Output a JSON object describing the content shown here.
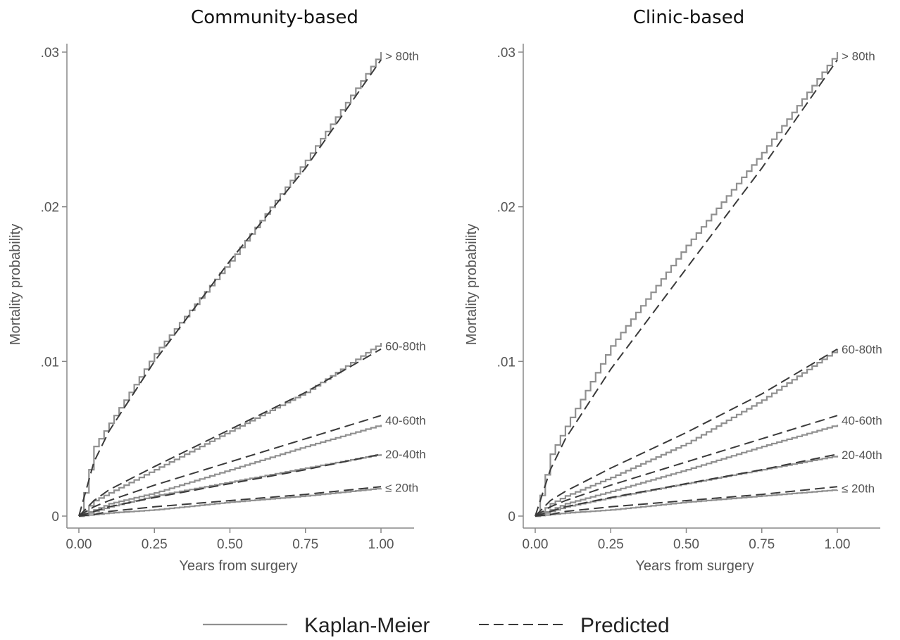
{
  "chart_data": [
    {
      "type": "line",
      "title": "Community-based",
      "xlabel": "Years from surgery",
      "ylabel": "Mortality probability",
      "xlim": [
        0,
        1
      ],
      "ylim": [
        0,
        0.03
      ],
      "xticks": [
        "0.00",
        "0.25",
        "0.50",
        "0.75",
        "1.00"
      ],
      "yticks": [
        "0",
        ".01",
        ".02",
        ".03"
      ],
      "x": [
        0,
        0.05,
        0.1,
        0.25,
        0.5,
        0.75,
        1.0
      ],
      "series": [
        {
          "name": "> 80th",
          "kind": "Kaplan-Meier",
          "values": [
            0,
            0.0045,
            0.006,
            0.0105,
            0.0165,
            0.023,
            0.03
          ]
        },
        {
          "name": "> 80th",
          "kind": "Predicted",
          "values": [
            0,
            0.0035,
            0.0055,
            0.01,
            0.0165,
            0.0225,
            0.0295
          ]
        },
        {
          "name": "60-80th",
          "kind": "Kaplan-Meier",
          "values": [
            0,
            0.001,
            0.0015,
            0.003,
            0.0055,
            0.008,
            0.0112
          ]
        },
        {
          "name": "60-80th",
          "kind": "Predicted",
          "values": [
            0,
            0.001,
            0.0017,
            0.0032,
            0.0056,
            0.008,
            0.0108
          ]
        },
        {
          "name": "40-60th",
          "kind": "Kaplan-Meier",
          "values": [
            0,
            0.0004,
            0.0008,
            0.0015,
            0.003,
            0.0045,
            0.0059
          ]
        },
        {
          "name": "40-60th",
          "kind": "Predicted",
          "values": [
            0,
            0.0006,
            0.001,
            0.002,
            0.0035,
            0.005,
            0.0065
          ]
        },
        {
          "name": "20-40th",
          "kind": "Kaplan-Meier",
          "values": [
            0,
            0.0003,
            0.0006,
            0.0013,
            0.0022,
            0.0031,
            0.004
          ]
        },
        {
          "name": "20-40th",
          "kind": "Predicted",
          "values": [
            0,
            0.0003,
            0.0006,
            0.0012,
            0.0021,
            0.003,
            0.004
          ]
        },
        {
          "name": "≤ 20th",
          "kind": "Kaplan-Meier",
          "values": [
            0,
            0.0001,
            0.0002,
            0.0004,
            0.0009,
            0.0013,
            0.0018
          ]
        },
        {
          "name": "≤ 20th",
          "kind": "Predicted",
          "values": [
            0,
            0.0001,
            0.0003,
            0.0006,
            0.001,
            0.0014,
            0.0019
          ]
        }
      ]
    },
    {
      "type": "line",
      "title": "Clinic-based",
      "xlabel": "Years from surgery",
      "ylabel": "Mortality probability",
      "xlim": [
        0,
        1
      ],
      "ylim": [
        0,
        0.03
      ],
      "xticks": [
        "0.00",
        "0.25",
        "0.50",
        "0.75",
        "1.00"
      ],
      "yticks": [
        "0",
        ".01",
        ".02",
        ".03"
      ],
      "x": [
        0,
        0.05,
        0.1,
        0.25,
        0.5,
        0.75,
        1.0
      ],
      "series": [
        {
          "name": "> 80th",
          "kind": "Kaplan-Meier",
          "values": [
            0,
            0.004,
            0.0058,
            0.011,
            0.0175,
            0.0235,
            0.03
          ]
        },
        {
          "name": "> 80th",
          "kind": "Predicted",
          "values": [
            0,
            0.003,
            0.005,
            0.0095,
            0.016,
            0.0225,
            0.0295
          ]
        },
        {
          "name": "60-80th",
          "kind": "Kaplan-Meier",
          "values": [
            0,
            0.0008,
            0.0013,
            0.0025,
            0.0047,
            0.0075,
            0.0108
          ]
        },
        {
          "name": "60-80th",
          "kind": "Predicted",
          "values": [
            0,
            0.001,
            0.0016,
            0.0031,
            0.0054,
            0.0079,
            0.0108
          ]
        },
        {
          "name": "40-60th",
          "kind": "Kaplan-Meier",
          "values": [
            0,
            0.0004,
            0.0008,
            0.0016,
            0.003,
            0.0045,
            0.0059
          ]
        },
        {
          "name": "40-60th",
          "kind": "Predicted",
          "values": [
            0,
            0.0006,
            0.001,
            0.002,
            0.0035,
            0.005,
            0.0065
          ]
        },
        {
          "name": "20-40th",
          "kind": "Kaplan-Meier",
          "values": [
            0,
            0.0003,
            0.0006,
            0.0012,
            0.0021,
            0.003,
            0.0039
          ]
        },
        {
          "name": "20-40th",
          "kind": "Predicted",
          "values": [
            0,
            0.0003,
            0.0006,
            0.0012,
            0.0021,
            0.003,
            0.004
          ]
        },
        {
          "name": "≤ 20th",
          "kind": "Kaplan-Meier",
          "values": [
            0,
            0.0001,
            0.0002,
            0.0004,
            0.0009,
            0.0013,
            0.0017
          ]
        },
        {
          "name": "≤ 20th",
          "kind": "Predicted",
          "values": [
            0,
            0.0001,
            0.0003,
            0.0006,
            0.001,
            0.0014,
            0.0019
          ]
        }
      ]
    }
  ],
  "legend": {
    "km_label": "Kaplan-Meier",
    "pred_label": "Predicted"
  }
}
